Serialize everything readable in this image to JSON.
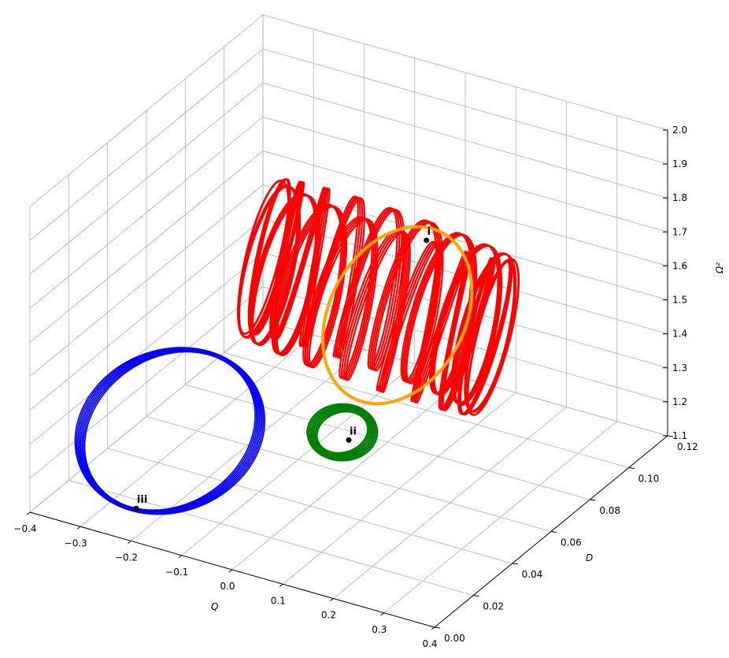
{
  "chart_data": {
    "type": "line3d",
    "title": "",
    "xlabel": "Q",
    "ylabel": "D",
    "zlabel": "Ω²",
    "xlim": [
      -0.4,
      0.4
    ],
    "ylim": [
      0.0,
      0.12
    ],
    "zlim": [
      1.1,
      2.0
    ],
    "x_ticks": [
      "−0.4",
      "−0.3",
      "−0.2",
      "−0.1",
      "0.0",
      "0.1",
      "0.2",
      "0.3",
      "0.4"
    ],
    "y_ticks": [
      "0.00",
      "0.02",
      "0.04",
      "0.06",
      "0.08",
      "0.10",
      "0.12"
    ],
    "z_ticks": [
      "1.1",
      "1.2",
      "1.3",
      "1.4",
      "1.5",
      "1.6",
      "1.7",
      "1.8",
      "1.9",
      "2.0"
    ],
    "grid": true,
    "series": [
      {
        "color": "#ff0000",
        "description_only": true
      },
      {
        "color": "#ffa500"
      },
      {
        "color": "#008000"
      },
      {
        "color": "#0000ff"
      }
    ],
    "points": [
      {
        "label": "i",
        "q": 0.0,
        "d": 0.1,
        "omega2": 1.6
      },
      {
        "label": "ii",
        "q": 0.0,
        "d": 0.06,
        "omega2": 1.2
      },
      {
        "label": "iii",
        "q": -0.19,
        "d": 0.0,
        "omega2": 1.2
      }
    ]
  }
}
